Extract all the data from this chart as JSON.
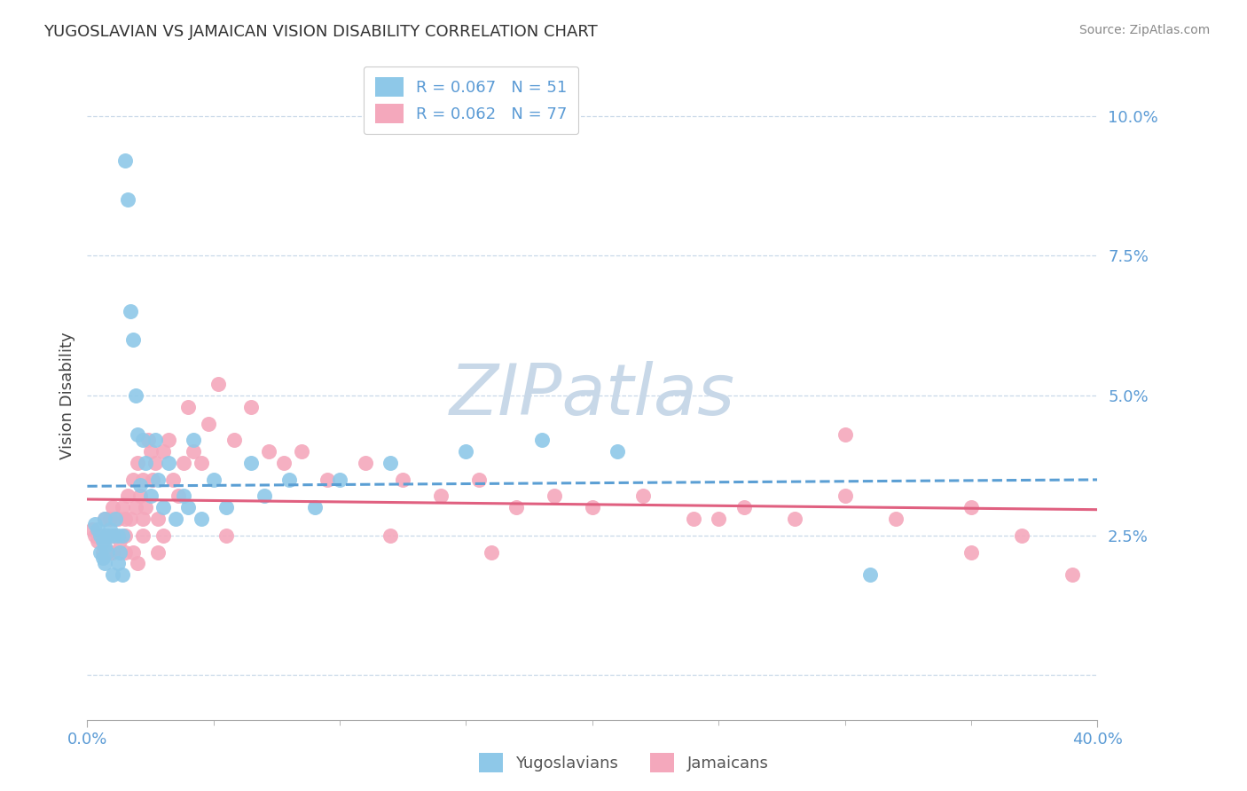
{
  "title": "YUGOSLAVIAN VS JAMAICAN VISION DISABILITY CORRELATION CHART",
  "source": "Source: ZipAtlas.com",
  "ylabel": "Vision Disability",
  "xlim": [
    0.0,
    0.4
  ],
  "ylim": [
    -0.008,
    0.108
  ],
  "yticks": [
    0.0,
    0.025,
    0.05,
    0.075,
    0.1
  ],
  "ytick_labels": [
    "",
    "2.5%",
    "5.0%",
    "7.5%",
    "10.0%"
  ],
  "xtick_left_label": "0.0%",
  "xtick_right_label": "40.0%",
  "legend_r1": "R = 0.067   N = 51",
  "legend_r2": "R = 0.062   N = 77",
  "color_yugo": "#8ec8e8",
  "color_jamaica": "#f4a8bc",
  "color_yugo_line": "#5b9fd4",
  "color_jamaica_line": "#e06080",
  "bg_color": "#ffffff",
  "grid_color": "#c8d8e8",
  "watermark_text": "ZIPatlas",
  "watermark_color": "#c8d8e8",
  "yugo_scatter_x": [
    0.003,
    0.004,
    0.005,
    0.005,
    0.006,
    0.006,
    0.007,
    0.007,
    0.007,
    0.008,
    0.008,
    0.009,
    0.01,
    0.01,
    0.011,
    0.012,
    0.012,
    0.013,
    0.014,
    0.014,
    0.015,
    0.016,
    0.017,
    0.018,
    0.019,
    0.02,
    0.021,
    0.022,
    0.023,
    0.025,
    0.027,
    0.028,
    0.03,
    0.032,
    0.035,
    0.038,
    0.04,
    0.042,
    0.045,
    0.05,
    0.055,
    0.065,
    0.07,
    0.08,
    0.09,
    0.1,
    0.12,
    0.15,
    0.18,
    0.21,
    0.31
  ],
  "yugo_scatter_y": [
    0.027,
    0.026,
    0.025,
    0.022,
    0.024,
    0.021,
    0.028,
    0.023,
    0.02,
    0.025,
    0.022,
    0.026,
    0.025,
    0.018,
    0.028,
    0.025,
    0.02,
    0.022,
    0.018,
    0.025,
    0.092,
    0.085,
    0.065,
    0.06,
    0.05,
    0.043,
    0.034,
    0.042,
    0.038,
    0.032,
    0.042,
    0.035,
    0.03,
    0.038,
    0.028,
    0.032,
    0.03,
    0.042,
    0.028,
    0.035,
    0.03,
    0.038,
    0.032,
    0.035,
    0.03,
    0.035,
    0.038,
    0.04,
    0.042,
    0.04,
    0.018
  ],
  "jamaica_scatter_x": [
    0.002,
    0.003,
    0.004,
    0.005,
    0.006,
    0.007,
    0.007,
    0.008,
    0.009,
    0.009,
    0.01,
    0.011,
    0.012,
    0.013,
    0.014,
    0.015,
    0.015,
    0.016,
    0.017,
    0.018,
    0.019,
    0.02,
    0.021,
    0.022,
    0.022,
    0.023,
    0.024,
    0.025,
    0.026,
    0.027,
    0.028,
    0.03,
    0.032,
    0.034,
    0.036,
    0.04,
    0.042,
    0.045,
    0.048,
    0.052,
    0.058,
    0.065,
    0.072,
    0.078,
    0.085,
    0.095,
    0.11,
    0.125,
    0.14,
    0.155,
    0.17,
    0.185,
    0.2,
    0.22,
    0.24,
    0.26,
    0.28,
    0.3,
    0.32,
    0.35,
    0.37,
    0.3,
    0.35,
    0.038,
    0.028,
    0.02,
    0.015,
    0.01,
    0.008,
    0.018,
    0.022,
    0.03,
    0.055,
    0.12,
    0.16,
    0.25,
    0.39
  ],
  "jamaica_scatter_y": [
    0.026,
    0.025,
    0.024,
    0.025,
    0.022,
    0.028,
    0.024,
    0.025,
    0.022,
    0.028,
    0.03,
    0.025,
    0.028,
    0.024,
    0.03,
    0.028,
    0.022,
    0.032,
    0.028,
    0.035,
    0.03,
    0.038,
    0.032,
    0.028,
    0.035,
    0.03,
    0.042,
    0.04,
    0.035,
    0.038,
    0.028,
    0.04,
    0.042,
    0.035,
    0.032,
    0.048,
    0.04,
    0.038,
    0.045,
    0.052,
    0.042,
    0.048,
    0.04,
    0.038,
    0.04,
    0.035,
    0.038,
    0.035,
    0.032,
    0.035,
    0.03,
    0.032,
    0.03,
    0.032,
    0.028,
    0.03,
    0.028,
    0.032,
    0.028,
    0.03,
    0.025,
    0.043,
    0.022,
    0.038,
    0.022,
    0.02,
    0.025,
    0.022,
    0.022,
    0.022,
    0.025,
    0.025,
    0.025,
    0.025,
    0.022,
    0.028,
    0.018
  ]
}
